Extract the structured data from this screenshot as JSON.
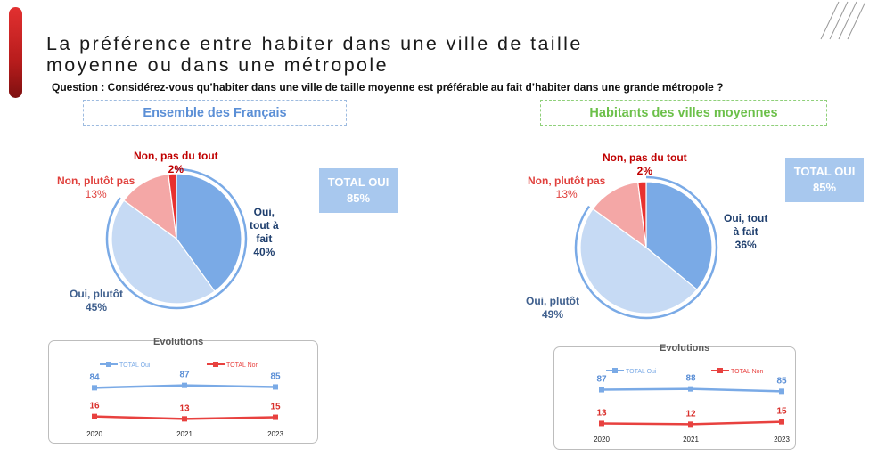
{
  "title_line1": "La préférence entre habiter dans une ville de taille",
  "title_line2": "moyenne ou dans une métropole",
  "question": "Question : Considérez-vous qu’habiter dans une ville de taille moyenne est préférable au fait d’habiter dans une grande métropole ?",
  "colors": {
    "oui_tout_a_fait": "#7aaae6",
    "oui_plutot": "#c6daf4",
    "non_plutot_pas": "#f4a7a6",
    "non_pas_du_tout": "#e8312f",
    "total_oui_line": "#7aaae6",
    "total_non_line": "#e8413f"
  },
  "chart_data": [
    {
      "type": "pie",
      "title": "Ensemble des Français",
      "total_label": "TOTAL OUI",
      "total_value": "85%",
      "slices": [
        {
          "label_lines": [
            "Oui,",
            "tout à",
            "fait"
          ],
          "value": 40,
          "value_text": "40%"
        },
        {
          "label_lines": [
            "Oui, plutôt"
          ],
          "value": 45,
          "value_text": "45%"
        },
        {
          "label_lines": [
            "Non, plutôt pas"
          ],
          "value": 13,
          "value_text": "13%"
        },
        {
          "label_lines": [
            "Non, pas du tout"
          ],
          "value": 2,
          "value_text": "2%"
        }
      ]
    },
    {
      "type": "pie",
      "title": "Habitants des villes moyennes",
      "total_label": "TOTAL OUI",
      "total_value": "85%",
      "slices": [
        {
          "label_lines": [
            "Oui, tout",
            "à fait"
          ],
          "value": 36,
          "value_text": "36%"
        },
        {
          "label_lines": [
            "Oui, plutôt"
          ],
          "value": 49,
          "value_text": "49%"
        },
        {
          "label_lines": [
            "Non, plutôt pas"
          ],
          "value": 13,
          "value_text": "13%"
        },
        {
          "label_lines": [
            "Non, pas du tout"
          ],
          "value": 2,
          "value_text": "2%"
        }
      ]
    },
    {
      "type": "line",
      "title": "Evolutions",
      "x": [
        "2020",
        "2021",
        "2023"
      ],
      "series": [
        {
          "name": "TOTAL Oui",
          "values": [
            84,
            87,
            85
          ]
        },
        {
          "name": "TOTAL Non",
          "values": [
            16,
            13,
            15
          ]
        }
      ]
    },
    {
      "type": "line",
      "title": "Evolutions",
      "x": [
        "2020",
        "2021",
        "2023"
      ],
      "series": [
        {
          "name": "TOTAL Oui",
          "values": [
            87,
            88,
            85
          ]
        },
        {
          "name": "TOTAL Non",
          "values": [
            13,
            12,
            15
          ]
        }
      ]
    }
  ]
}
